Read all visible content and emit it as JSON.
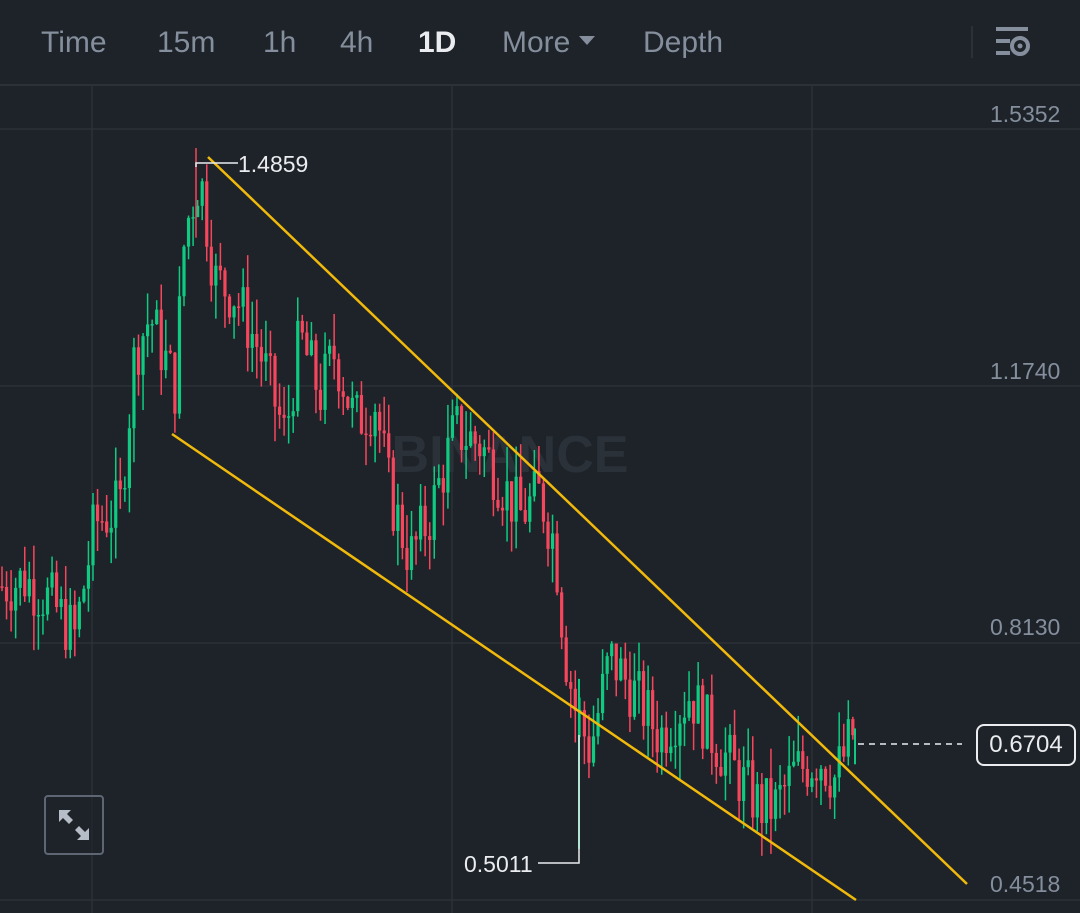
{
  "toolbar": {
    "tabs": [
      {
        "label": "Time"
      },
      {
        "label": "15m"
      },
      {
        "label": "1h"
      },
      {
        "label": "4h"
      },
      {
        "label": "1D",
        "active": true
      },
      {
        "label": "More"
      },
      {
        "label": "Depth"
      }
    ]
  },
  "chart": {
    "watermark": "BINANCE",
    "price_axis": [
      "1.5352",
      "1.1740",
      "0.8130",
      "0.4518"
    ],
    "current_price": "0.6704",
    "high_label": "1.4859",
    "low_label": "0.5011",
    "colors": {
      "background": "#1e2329",
      "up": "#0ecb81",
      "down": "#f6465d",
      "trendline": "#f0b90b",
      "grid": "#2b3139"
    }
  },
  "chart_data": {
    "type": "candlestick",
    "interval": "1D",
    "ylim": [
      0.4518,
      1.5352
    ],
    "y_ticks": [
      1.5352,
      1.174,
      0.813,
      0.4518
    ],
    "annotations": {
      "high": 1.4859,
      "low": 0.5011,
      "last": 0.6704
    },
    "trendlines": [
      {
        "name": "upper",
        "color": "#f0b90b"
      },
      {
        "name": "lower",
        "color": "#f0b90b"
      }
    ]
  }
}
